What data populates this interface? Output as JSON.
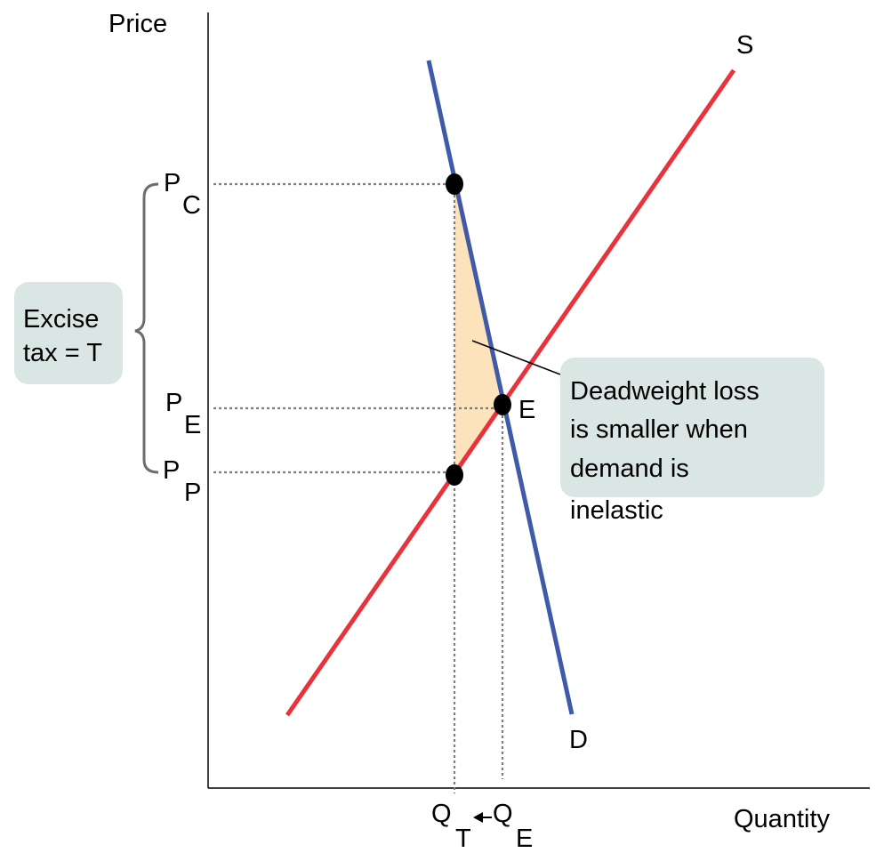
{
  "axes": {
    "y_label": "Price",
    "x_label": "Quantity"
  },
  "curves": {
    "supply_label": "S",
    "demand_label": "D",
    "supply_color": "#e8323c",
    "demand_color": "#3f5aa8"
  },
  "points": {
    "equilibrium_label": "E"
  },
  "price_labels": {
    "pc": {
      "main": "P",
      "sub": "C"
    },
    "pe": {
      "main": "P",
      "sub": "E"
    },
    "pp": {
      "main": "P",
      "sub": "P"
    }
  },
  "quantity_labels": {
    "qt": {
      "main": "Q",
      "sub": "T"
    },
    "qe": {
      "main": "Q",
      "sub": "E"
    }
  },
  "tax_box": {
    "line1": "Excise",
    "line2": "tax = T"
  },
  "dwl_box": {
    "line1": "Deadweight loss",
    "line2": "is smaller when",
    "line3": "demand is",
    "line4": "inelastic"
  },
  "colors": {
    "dwl_fill": "#fde3bb",
    "callout_bg": "#d9e6e3",
    "brace": "#6d6d6d",
    "guide": "#7d7d7d"
  }
}
